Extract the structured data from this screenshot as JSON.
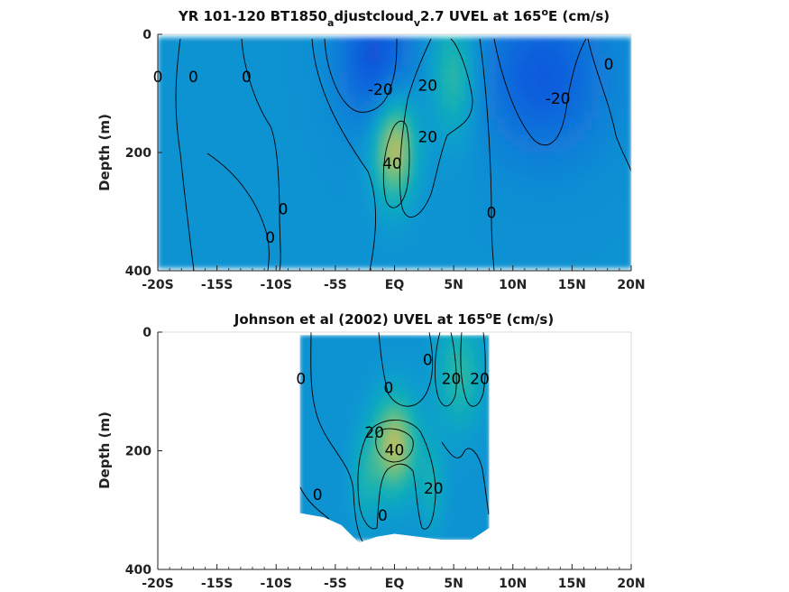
{
  "chart_data": [
    {
      "type": "heatmap",
      "title_parts": {
        "t1": "YR 101-120 BT1850",
        "s1": "a",
        "t2": "djustcloud",
        "s2": "v",
        "t3": "2.7 UVEL at 165",
        "sup": "o",
        "t4": "E (cm/s)"
      },
      "xlabel": "",
      "ylabel": "Depth (m)",
      "xlim": [
        -20,
        20
      ],
      "ylim": [
        0,
        400
      ],
      "y_reversed": true,
      "xticks": [
        -20,
        -15,
        -10,
        -5,
        0,
        5,
        10,
        15,
        20
      ],
      "xtick_labels": [
        "-20S",
        "-15S",
        "-10S",
        "-5S",
        "EQ",
        "5N",
        "10N",
        "15N",
        "20N"
      ],
      "yticks": [
        0,
        200,
        400
      ],
      "ytick_labels": [
        "0",
        "200",
        "400"
      ],
      "data_extent": {
        "x": [
          -20,
          20
        ],
        "depth": [
          5,
          395
        ]
      },
      "color_range": [
        -40,
        60
      ],
      "features": [
        {
          "name": "equatorial undercurrent core",
          "x": 0,
          "depth": 190,
          "value": 45,
          "sx": 1.3,
          "sd": 65
        },
        {
          "name": "north equatorial countercurrent",
          "x": 5,
          "depth": 70,
          "value": 25,
          "sx": 1.4,
          "sd": 75
        },
        {
          "name": "south equatorial current",
          "x": -1.6,
          "depth": 40,
          "value": -28,
          "sx": 2.2,
          "sd": 80
        },
        {
          "name": "north equatorial current",
          "x": 12.5,
          "depth": 70,
          "value": -25,
          "sx": 3.8,
          "sd": 95
        }
      ],
      "contour_labels": [
        {
          "text": "0",
          "x": -20,
          "depth": 73
        },
        {
          "text": "0",
          "x": -17,
          "depth": 73
        },
        {
          "text": "0",
          "x": -12.5,
          "depth": 73
        },
        {
          "text": "0",
          "x": -9.4,
          "depth": 297
        },
        {
          "text": "0",
          "x": -10.5,
          "depth": 345
        },
        {
          "text": "-20",
          "x": -1.2,
          "depth": 95
        },
        {
          "text": "20",
          "x": 2.8,
          "depth": 88
        },
        {
          "text": "20",
          "x": 2.8,
          "depth": 175
        },
        {
          "text": "40",
          "x": -0.2,
          "depth": 220
        },
        {
          "text": "0",
          "x": 8.2,
          "depth": 303
        },
        {
          "text": "-20",
          "x": 13.8,
          "depth": 110
        },
        {
          "text": "0",
          "x": 18.1,
          "depth": 52
        }
      ]
    },
    {
      "type": "heatmap",
      "title_parts": {
        "t1": "Johnson et al (2002) UVEL at 165",
        "sup": "o",
        "t4": "E (cm/s)"
      },
      "xlabel": "",
      "ylabel": "Depth (m)",
      "xlim": [
        -20,
        20
      ],
      "ylim": [
        0,
        400
      ],
      "y_reversed": true,
      "xticks": [
        -20,
        -15,
        -10,
        -5,
        0,
        5,
        10,
        15,
        20
      ],
      "xtick_labels": [
        "-20S",
        "-15S",
        "-10S",
        "-5S",
        "EQ",
        "5N",
        "10N",
        "15N",
        "20N"
      ],
      "yticks": [
        0,
        200,
        400
      ],
      "ytick_labels": [
        "0",
        "200",
        "400"
      ],
      "data_extent": {
        "x": [
          -8,
          8
        ],
        "depth": [
          5,
          350
        ]
      },
      "bottom_profile": [
        {
          "x": -8,
          "depth": 305
        },
        {
          "x": -6,
          "depth": 312
        },
        {
          "x": -4.5,
          "depth": 325
        },
        {
          "x": -3,
          "depth": 355
        },
        {
          "x": -1.5,
          "depth": 345
        },
        {
          "x": 0,
          "depth": 340
        },
        {
          "x": 2,
          "depth": 345
        },
        {
          "x": 4,
          "depth": 350
        },
        {
          "x": 6.5,
          "depth": 350
        },
        {
          "x": 8,
          "depth": 330
        }
      ],
      "color_range": [
        -40,
        60
      ],
      "features": [
        {
          "name": "equatorial undercurrent core",
          "x": 0,
          "depth": 190,
          "value": 42,
          "sx": 1.4,
          "sd": 60
        },
        {
          "name": "north equatorial countercurrent",
          "x": 5.5,
          "depth": 70,
          "value": 22,
          "sx": 1.5,
          "sd": 70
        },
        {
          "name": "south branch",
          "x": -2.5,
          "depth": 250,
          "value": 14,
          "sx": 0.9,
          "sd": 55
        },
        {
          "name": "north branch",
          "x": 3.2,
          "depth": 260,
          "value": 14,
          "sx": 0.8,
          "sd": 55
        }
      ],
      "contour_labels": [
        {
          "text": "0",
          "x": -7.9,
          "depth": 80
        },
        {
          "text": "0",
          "x": -0.5,
          "depth": 95
        },
        {
          "text": "0",
          "x": 2.8,
          "depth": 48
        },
        {
          "text": "20",
          "x": 4.8,
          "depth": 80
        },
        {
          "text": "20",
          "x": 7.2,
          "depth": 80
        },
        {
          "text": "20",
          "x": -1.7,
          "depth": 170
        },
        {
          "text": "40",
          "x": 0,
          "depth": 200
        },
        {
          "text": "20",
          "x": 3.3,
          "depth": 265
        },
        {
          "text": "0",
          "x": -6.5,
          "depth": 275
        },
        {
          "text": "0",
          "x": -1,
          "depth": 310
        }
      ]
    }
  ]
}
